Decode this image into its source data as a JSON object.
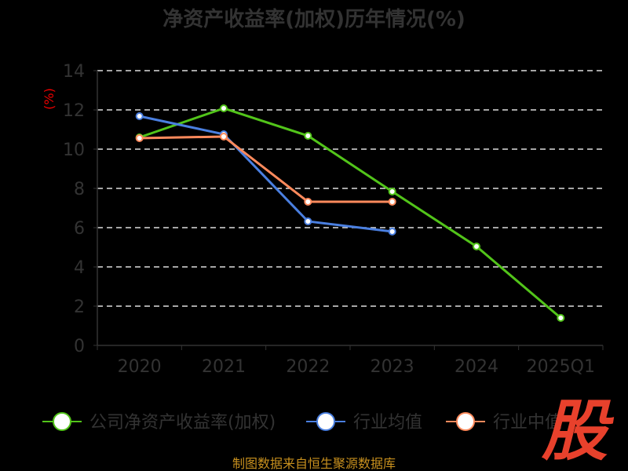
{
  "chart_data": {
    "type": "line",
    "title": "净资产收益率(加权)历年情况(%)",
    "ylabel": "(%)",
    "xlabel": "",
    "ylim": [
      0,
      14
    ],
    "yticks": [
      0,
      2,
      4,
      6,
      8,
      10,
      12,
      14
    ],
    "grid": true,
    "legend_placement": "bottom",
    "categories": [
      "2020",
      "2021",
      "2022",
      "2023",
      "2024",
      "2025Q1"
    ],
    "series": [
      {
        "name": "公司净资产收益率(加权)",
        "color": "#52c41a",
        "values": [
          10.6,
          12.08,
          10.68,
          7.84,
          5.04,
          1.4
        ]
      },
      {
        "name": "行业均值",
        "color": "#4a7fe0",
        "values": [
          11.68,
          10.76,
          6.32,
          5.8,
          null,
          null
        ]
      },
      {
        "name": "行业中值",
        "color": "#ff8a5c",
        "values": [
          10.56,
          10.64,
          7.32,
          7.32,
          null,
          null
        ]
      }
    ]
  },
  "source": "制图数据来自恒生聚源数据库",
  "logo": "股"
}
